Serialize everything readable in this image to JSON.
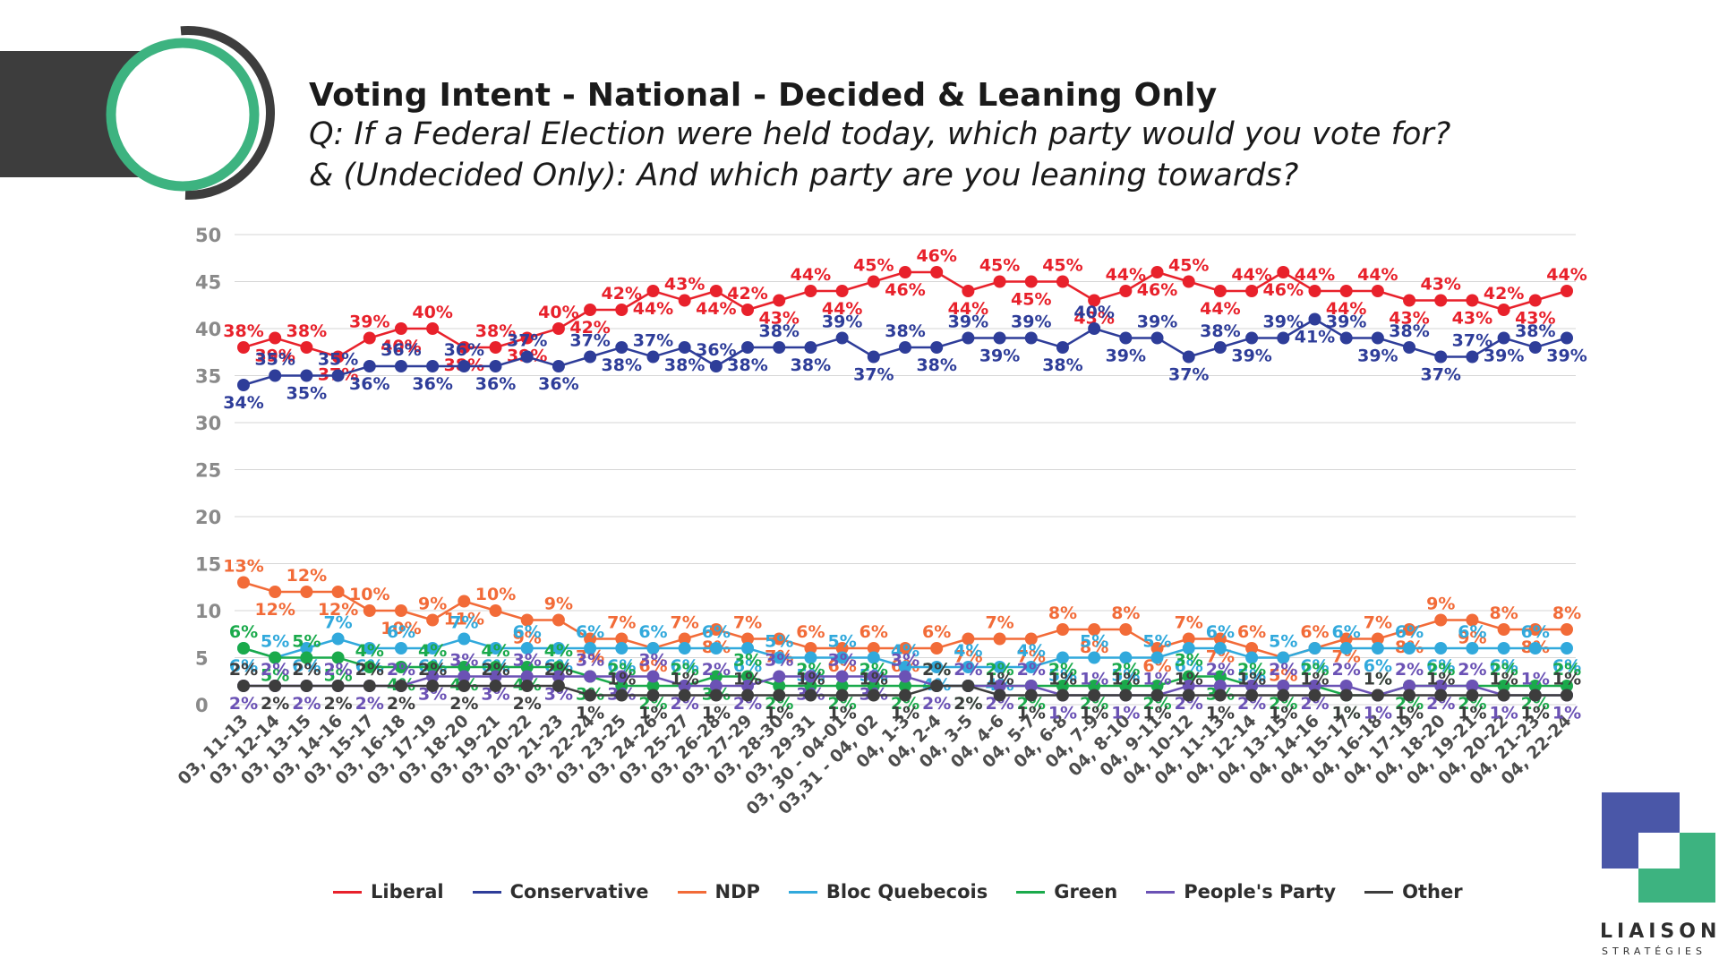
{
  "header": {
    "title": "Voting Intent - National - Decided & Leaning Only",
    "subtitle_line1": "Q: If a Federal Election were held today, which party would you vote for?",
    "subtitle_line2": "& (Undecided Only): And which party are you leaning towards?"
  },
  "brand": {
    "name": "LIAISON",
    "sub": "STRATÉGIES",
    "colors": [
      "#4a57a8",
      "#3db380"
    ]
  },
  "chart_data": {
    "type": "line",
    "title": "Voting Intent - National - Decided & Leaning Only",
    "ylim": [
      0,
      50
    ],
    "yticks": [
      0,
      5,
      10,
      15,
      20,
      25,
      30,
      35,
      40,
      45,
      50
    ],
    "grid": true,
    "legend_position": "bottom",
    "categories": [
      "03, 11-13",
      "03, 12-14",
      "03, 13-15",
      "03, 14-16",
      "03, 15-17",
      "03, 16-18",
      "03, 17-19",
      "03, 18-20",
      "03, 19-21",
      "03, 20-22",
      "03, 21-23",
      "03, 22-24",
      "03, 23-25",
      "03, 24-26",
      "03, 25-27",
      "03, 26-28",
      "03, 27-29",
      "03, 28-30",
      "03, 29-31",
      "03, 30 - 04-01",
      "03,31 - 04, 02",
      "04, 1-3",
      "04, 2-4",
      "04, 3-5",
      "04, 4-6",
      "04, 5-7",
      "04, 6-8",
      "04, 7-9",
      "04, 8-10",
      "04, 9-11",
      "04, 10-12",
      "04, 11-13",
      "04, 12-14",
      "04, 13-15",
      "04, 14-16",
      "04, 15-17",
      "04, 16-18",
      "04, 17-19",
      "04, 18-20",
      "04, 19-21",
      "04, 20-22",
      "04, 21-23",
      "04, 22-24"
    ],
    "series": [
      {
        "name": "Liberal",
        "color": "#e8212b",
        "values": [
          38,
          39,
          38,
          37,
          39,
          40,
          40,
          38,
          38,
          39,
          40,
          42,
          42,
          44,
          43,
          44,
          42,
          43,
          44,
          44,
          45,
          46,
          46,
          44,
          45,
          45,
          45,
          43,
          44,
          46,
          45,
          44,
          44,
          46,
          44,
          44,
          44,
          43,
          43,
          43,
          42,
          43,
          44
        ]
      },
      {
        "name": "Conservative",
        "color": "#2e3d99",
        "values": [
          34,
          35,
          35,
          35,
          36,
          36,
          36,
          36,
          36,
          37,
          36,
          37,
          38,
          37,
          38,
          36,
          38,
          38,
          38,
          39,
          37,
          38,
          38,
          39,
          39,
          39,
          38,
          40,
          39,
          39,
          37,
          38,
          39,
          39,
          41,
          39,
          39,
          38,
          37,
          37,
          39,
          38,
          39
        ]
      },
      {
        "name": "NDP",
        "color": "#f26b38",
        "values": [
          13,
          12,
          12,
          12,
          10,
          10,
          9,
          11,
          10,
          9,
          9,
          7,
          7,
          6,
          7,
          8,
          7,
          7,
          6,
          6,
          6,
          6,
          6,
          7,
          7,
          7,
          8,
          8,
          8,
          6,
          7,
          7,
          6,
          5,
          6,
          7,
          7,
          8,
          9,
          9,
          8,
          8,
          8
        ]
      },
      {
        "name": "Bloc Quebecois",
        "color": "#31a9dc",
        "values": [
          6,
          5,
          6,
          7,
          6,
          6,
          6,
          7,
          6,
          6,
          6,
          6,
          6,
          6,
          6,
          6,
          6,
          5,
          5,
          5,
          5,
          4,
          4,
          4,
          4,
          4,
          5,
          5,
          5,
          5,
          6,
          6,
          5,
          5,
          6,
          6,
          6,
          6,
          6,
          6,
          6,
          6,
          6
        ]
      },
      {
        "name": "Green",
        "color": "#1aaa4b",
        "values": [
          6,
          5,
          5,
          5,
          4,
          4,
          4,
          4,
          4,
          4,
          4,
          3,
          2,
          2,
          2,
          3,
          3,
          2,
          2,
          2,
          2,
          2,
          2,
          2,
          2,
          2,
          2,
          2,
          2,
          2,
          3,
          3,
          2,
          2,
          2,
          1,
          1,
          2,
          2,
          2,
          2,
          2,
          2
        ]
      },
      {
        "name": "People's Party",
        "color": "#6b52b5",
        "values": [
          2,
          2,
          2,
          2,
          2,
          2,
          3,
          3,
          3,
          3,
          3,
          3,
          3,
          3,
          2,
          2,
          2,
          3,
          3,
          3,
          3,
          3,
          2,
          2,
          2,
          2,
          1,
          1,
          1,
          1,
          2,
          2,
          2,
          2,
          2,
          2,
          1,
          2,
          2,
          2,
          1,
          1,
          1
        ]
      },
      {
        "name": "Other",
        "color": "#3d3d3d",
        "values": [
          2,
          2,
          2,
          2,
          2,
          2,
          2,
          2,
          2,
          2,
          2,
          1,
          1,
          1,
          1,
          1,
          1,
          1,
          1,
          1,
          1,
          1,
          2,
          2,
          1,
          1,
          1,
          1,
          1,
          1,
          1,
          1,
          1,
          1,
          1,
          1,
          1,
          1,
          1,
          1,
          1,
          1,
          1
        ]
      }
    ]
  }
}
